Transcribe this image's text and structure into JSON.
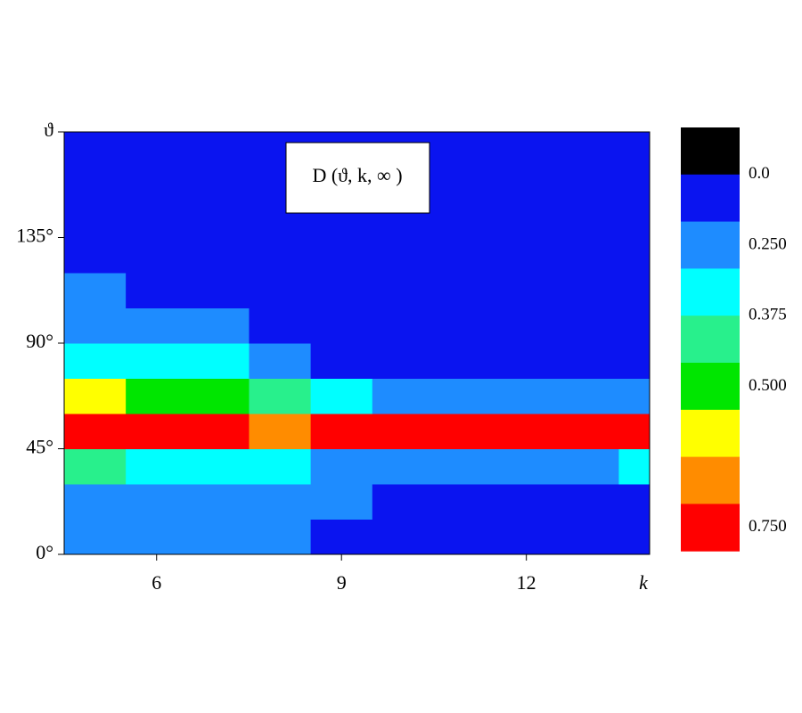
{
  "chart_data": {
    "type": "heatmap",
    "title": "D (ϑ, k, ∞ )",
    "x_label": "k",
    "xlim": [
      4.5,
      14
    ],
    "ylim": [
      0,
      180
    ],
    "xticks": [
      6,
      9,
      12
    ],
    "yticks": [
      {
        "value": 0,
        "label": "0°"
      },
      {
        "value": 45,
        "label": "45°"
      },
      {
        "value": 90,
        "label": "90°"
      },
      {
        "value": 135,
        "label": "135°"
      },
      {
        "value": 180,
        "label": "ϑ"
      }
    ],
    "x_bins": [
      4.5,
      5.5,
      6.5,
      7.5,
      8.5,
      9.5,
      10.5,
      11.5,
      12.5,
      13.5,
      14
    ],
    "y_bins": [
      0,
      15,
      30,
      45,
      60,
      75,
      90,
      105,
      120,
      135,
      150,
      165,
      180
    ],
    "z": [
      [
        0.2,
        0.15,
        0.2,
        0.15,
        0.1,
        0.05,
        0.05,
        0.05,
        0.05,
        0.05
      ],
      [
        0.25,
        0.25,
        0.2,
        0.2,
        0.15,
        0.1,
        0.1,
        0.1,
        0.1,
        0.1
      ],
      [
        0.4,
        0.35,
        0.35,
        0.3,
        0.25,
        0.2,
        0.15,
        0.2,
        0.15,
        0.3
      ],
      [
        0.8,
        0.75,
        0.7,
        0.65,
        0.75,
        0.75,
        0.75,
        0.75,
        0.75,
        0.78
      ],
      [
        0.6,
        0.55,
        0.5,
        0.45,
        0.3,
        0.25,
        0.25,
        0.25,
        0.2,
        0.25
      ],
      [
        0.35,
        0.3,
        0.3,
        0.2,
        0.1,
        0.05,
        0.05,
        0.05,
        0.05,
        0.05
      ],
      [
        0.2,
        0.15,
        0.15,
        0.1,
        0.05,
        0.05,
        0.05,
        0.05,
        0.05,
        0.05
      ],
      [
        0.15,
        0.05,
        0.05,
        0.05,
        0.05,
        0.05,
        0.05,
        0.05,
        0.05,
        0.05
      ],
      [
        0.05,
        0.05,
        0.05,
        0.05,
        0.05,
        0.05,
        0.05,
        0.05,
        0.05,
        0.05
      ],
      [
        0.05,
        0.05,
        0.05,
        0.05,
        0.05,
        0.05,
        0.05,
        0.05,
        0.05,
        0.05
      ],
      [
        0.05,
        0.05,
        0.05,
        0.05,
        0.05,
        0.05,
        0.05,
        0.05,
        0.05,
        0.05
      ],
      [
        0.05,
        0.05,
        0.05,
        0.05,
        0.05,
        0.05,
        0.05,
        0.05,
        0.05,
        0.05
      ]
    ],
    "levels": [
      0.15,
      0.3,
      0.4,
      0.5,
      0.6,
      0.65,
      0.7
    ],
    "colors": [
      "#0a14f0",
      "#1e8cff",
      "#00ffff",
      "#28f08c",
      "#00e600",
      "#ffff00",
      "#ff8c00",
      "#ff0000"
    ],
    "colorbar_top_color": "#000000",
    "colorbar_ticks": [
      {
        "value": 0,
        "label": "0.0"
      },
      {
        "value": 0.25,
        "label": "0.250"
      },
      {
        "value": 0.375,
        "label": "0.375"
      },
      {
        "value": 0.5,
        "label": "0.500"
      },
      {
        "value": 0.75,
        "label": "0.750"
      }
    ]
  }
}
